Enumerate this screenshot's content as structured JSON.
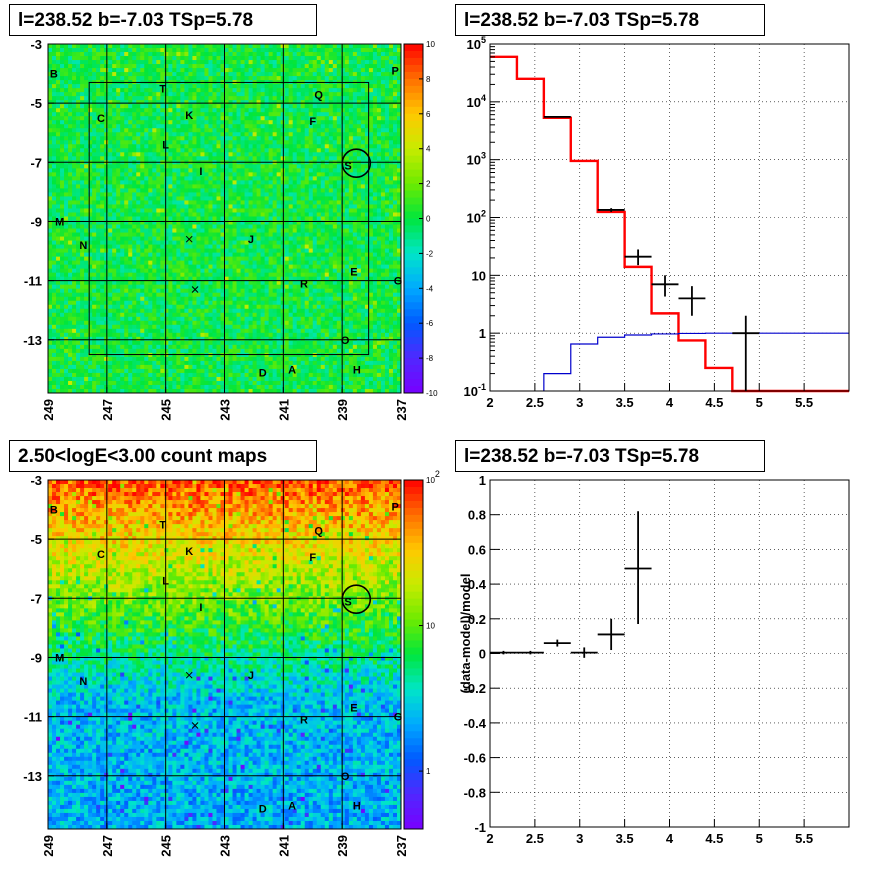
{
  "panels": {
    "tl_title": "l=238.52 b=-7.03 TSp=5.78",
    "tr_title": "l=238.52 b=-7.03 TSp=5.78",
    "bl_title": "2.50<logE<3.00 count maps",
    "br_title": "l=238.52 b=-7.03 TSp=5.78"
  },
  "colors": {
    "data": "#000000",
    "model": "#ff0000",
    "background": "#0000cc"
  },
  "chart_data": [
    {
      "type": "heatmap",
      "panel": "top-left",
      "title": "l=238.52 b=-7.03 TSp=5.78",
      "x_ticks": [
        "249",
        "247",
        "245",
        "243",
        "241",
        "239",
        "237"
      ],
      "y_ticks": [
        "-3",
        "-5",
        "-7",
        "-9",
        "-11",
        "-13"
      ],
      "xlim": [
        249,
        237
      ],
      "ylim": [
        -3,
        -14.8
      ],
      "colorbar": {
        "scale": "linear",
        "range": [
          -10,
          10
        ],
        "ticks": [
          "10",
          "8",
          "6",
          "4",
          "2",
          "0",
          "-2",
          "-4",
          "-6",
          "-8",
          "-10"
        ]
      },
      "sources": [
        {
          "name": "B",
          "l": 248.8,
          "b": -4.0
        },
        {
          "name": "P",
          "l": 237.2,
          "b": -3.9
        },
        {
          "name": "T",
          "l": 245.1,
          "b": -4.5
        },
        {
          "name": "Q",
          "l": 239.8,
          "b": -4.7
        },
        {
          "name": "C",
          "l": 247.2,
          "b": -5.5
        },
        {
          "name": "K",
          "l": 244.2,
          "b": -5.4
        },
        {
          "name": "F",
          "l": 240.0,
          "b": -5.6
        },
        {
          "name": "L",
          "l": 245.0,
          "b": -6.4
        },
        {
          "name": "I",
          "l": 243.8,
          "b": -7.3
        },
        {
          "name": "S",
          "l": 238.8,
          "b": -7.1
        },
        {
          "name": "M",
          "l": 248.6,
          "b": -9.0
        },
        {
          "name": "J",
          "l": 242.1,
          "b": -9.6
        },
        {
          "name": "N",
          "l": 247.8,
          "b": -9.8
        },
        {
          "name": "E",
          "l": 238.6,
          "b": -10.7
        },
        {
          "name": "R",
          "l": 240.3,
          "b": -11.1
        },
        {
          "name": "G",
          "l": 237.1,
          "b": -11.0
        },
        {
          "name": "O",
          "l": 238.9,
          "b": -13.0
        },
        {
          "name": "D",
          "l": 241.7,
          "b": -14.1
        },
        {
          "name": "A",
          "l": 240.7,
          "b": -14.0
        },
        {
          "name": "H",
          "l": 238.5,
          "b": -14.0
        }
      ]
    },
    {
      "type": "line",
      "panel": "top-right",
      "title": "l=238.52 b=-7.03 TSp=5.78",
      "xlabel": "",
      "ylabel": "",
      "xlim": [
        2,
        6
      ],
      "ylim": [
        0.1,
        100000
      ],
      "yscale": "log",
      "x_ticks": [
        "2",
        "2.5",
        "3",
        "3.5",
        "4",
        "4.5",
        "5",
        "5.5"
      ],
      "y_ticks": [
        "10^5",
        "10^4",
        "10^3",
        "10^2",
        "10",
        "1",
        "10^-1"
      ],
      "grid": true,
      "series": [
        {
          "name": "",
          "kind": "step",
          "color": "#ff0000",
          "bin_edges": [
            2.0,
            2.3,
            2.6,
            2.9,
            3.2,
            3.5,
            3.8,
            4.1,
            4.4,
            4.7,
            5.0,
            5.3,
            5.6,
            6.0
          ],
          "values": [
            60000,
            25000,
            5300,
            950,
            125,
            14,
            2.2,
            0.75,
            0.25,
            0.1,
            0.1,
            0.1,
            0.1
          ]
        },
        {
          "name": "",
          "kind": "step",
          "color": "#0000cc",
          "bin_edges": [
            2.6,
            2.9,
            3.2,
            3.5,
            3.8,
            4.1,
            4.4,
            4.7,
            5.0,
            5.3,
            5.6,
            6.0
          ],
          "values": [
            0.2,
            0.65,
            0.85,
            0.93,
            0.97,
            0.99,
            1.0,
            1.0,
            1.0,
            1.0,
            1.0
          ]
        },
        {
          "name": "",
          "kind": "errorbar",
          "color": "#000000",
          "points": [
            {
              "x": 2.75,
              "y": 5500,
              "xerr": 0.15,
              "ylo": 5350,
              "yhi": 5650
            },
            {
              "x": 3.35,
              "y": 135,
              "xerr": 0.15,
              "ylo": 125,
              "yhi": 145
            },
            {
              "x": 3.65,
              "y": 21,
              "xerr": 0.15,
              "ylo": 15,
              "yhi": 28
            },
            {
              "x": 3.95,
              "y": 7,
              "xerr": 0.15,
              "ylo": 4.3,
              "yhi": 10
            },
            {
              "x": 4.25,
              "y": 4,
              "xerr": 0.15,
              "ylo": 2.0,
              "yhi": 6.5
            },
            {
              "x": 4.85,
              "y": 1.0,
              "xerr": 0.15,
              "ylo": 0.1,
              "yhi": 2.0
            }
          ]
        }
      ]
    },
    {
      "type": "heatmap",
      "panel": "bottom-left",
      "title": "2.50<logE<3.00 count maps",
      "x_ticks": [
        "249",
        "247",
        "245",
        "243",
        "241",
        "239",
        "237"
      ],
      "y_ticks": [
        "-3",
        "-5",
        "-7",
        "-9",
        "-11",
        "-13"
      ],
      "xlim": [
        249,
        237
      ],
      "ylim": [
        -3,
        -14.8
      ],
      "colorbar": {
        "scale": "log",
        "range": [
          0.4,
          100
        ],
        "ticks": [
          "10^2",
          "10",
          "1"
        ]
      }
    },
    {
      "type": "scatter",
      "panel": "bottom-right",
      "title": "l=238.52 b=-7.03 TSp=5.78",
      "xlabel": "",
      "ylabel": "(data-model)/model",
      "xlim": [
        2,
        6
      ],
      "ylim": [
        -1,
        1
      ],
      "x_ticks": [
        "2",
        "2.5",
        "3",
        "3.5",
        "4",
        "4.5",
        "5",
        "5.5"
      ],
      "y_ticks": [
        "1",
        "0.8",
        "0.6",
        "0.4",
        "0.2",
        "0",
        "-0.2",
        "-0.4",
        "-0.6",
        "-0.8",
        "-1"
      ],
      "grid": true,
      "points": [
        {
          "x": 2.15,
          "y": 0.005,
          "xerr": 0.15,
          "ylo": -0.005,
          "yhi": 0.015
        },
        {
          "x": 2.45,
          "y": 0.005,
          "xerr": 0.15,
          "ylo": -0.005,
          "yhi": 0.015
        },
        {
          "x": 2.75,
          "y": 0.06,
          "xerr": 0.15,
          "ylo": 0.04,
          "yhi": 0.08
        },
        {
          "x": 3.05,
          "y": 0.005,
          "xerr": 0.15,
          "ylo": -0.025,
          "yhi": 0.035
        },
        {
          "x": 3.35,
          "y": 0.11,
          "xerr": 0.15,
          "ylo": 0.02,
          "yhi": 0.2
        },
        {
          "x": 3.65,
          "y": 0.49,
          "xerr": 0.15,
          "ylo": 0.17,
          "yhi": 0.82
        }
      ]
    }
  ]
}
